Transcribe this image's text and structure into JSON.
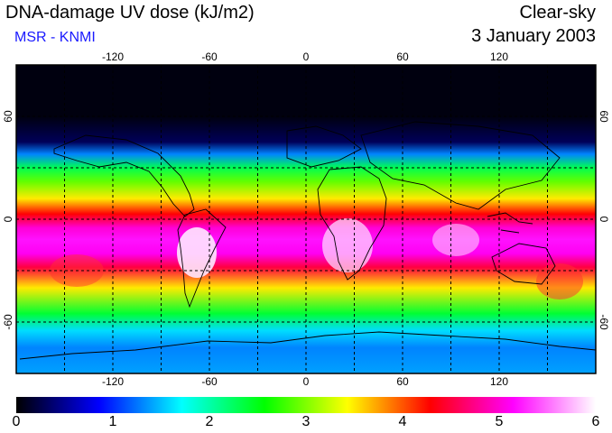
{
  "header": {
    "title": "DNA-damage UV dose (kJ/m2)",
    "subtitle": "MSR - KNMI",
    "mode": "Clear-sky",
    "date": "3 January 2003"
  },
  "map": {
    "lon_ticks": [
      "-120",
      "-60",
      "0",
      "60",
      "120"
    ],
    "lat_ticks_left": [
      "60",
      "0",
      "-60"
    ],
    "lat_ticks_right": [
      "60",
      "0",
      "-60"
    ],
    "lon_range": [
      -180,
      180
    ],
    "lat_range": [
      -90,
      90
    ],
    "grid": "dashed",
    "band_stops": [
      {
        "lat": 90,
        "value": 0.05
      },
      {
        "lat": 60,
        "value": 0.05
      },
      {
        "lat": 45,
        "value": 0.3
      },
      {
        "lat": 38,
        "value": 1.3
      },
      {
        "lat": 30,
        "value": 2.3
      },
      {
        "lat": 22,
        "value": 2.9
      },
      {
        "lat": 12,
        "value": 3.5
      },
      {
        "lat": 3,
        "value": 4.3
      },
      {
        "lat": -5,
        "value": 5.0
      },
      {
        "lat": -12,
        "value": 5.2
      },
      {
        "lat": -20,
        "value": 5.1
      },
      {
        "lat": -28,
        "value": 4.5
      },
      {
        "lat": -40,
        "value": 3.5
      },
      {
        "lat": -55,
        "value": 2.4
      },
      {
        "lat": -65,
        "value": 1.6
      },
      {
        "lat": -75,
        "value": 1.3
      },
      {
        "lat": -90,
        "value": 1.4
      }
    ]
  },
  "colorbar": {
    "min": 0,
    "max": 6,
    "labels": [
      "0",
      "1",
      "2",
      "3",
      "4",
      "5",
      "6"
    ],
    "colors": [
      "#000000",
      "#0000ff",
      "#00ffff",
      "#00ff00",
      "#ffff00",
      "#ff0000",
      "#ff00ff",
      "#ffffff"
    ]
  }
}
